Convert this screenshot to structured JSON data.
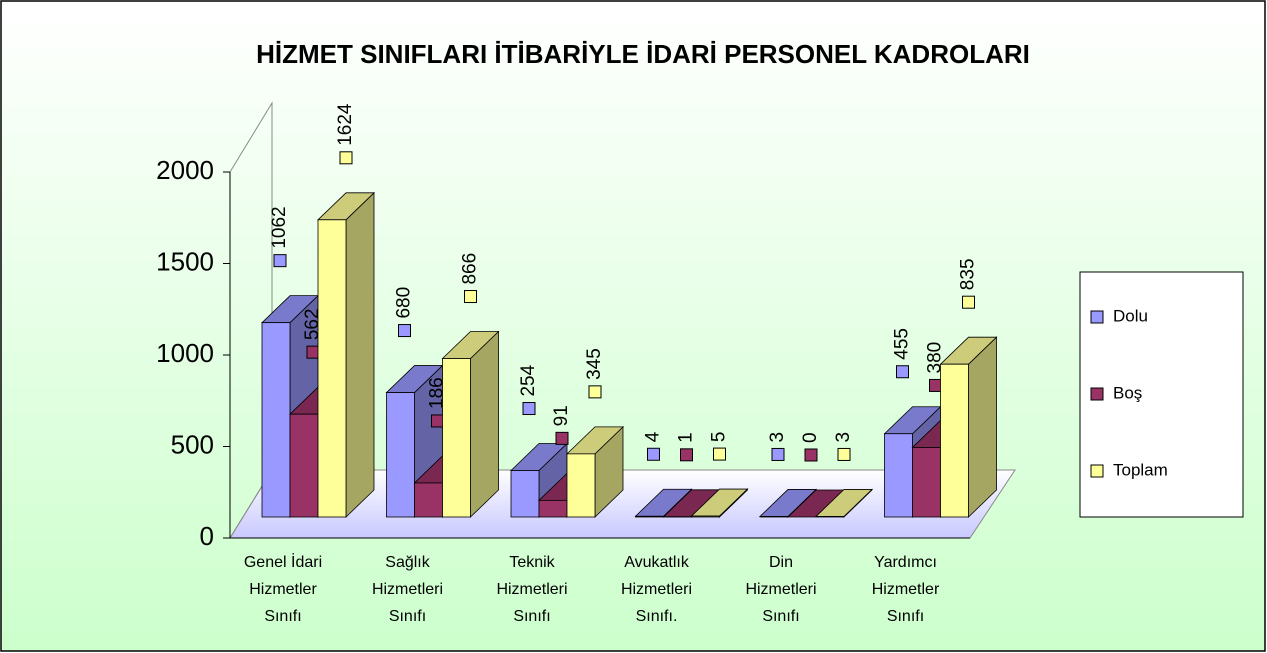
{
  "chart_data": {
    "type": "bar3d",
    "title": "HİZMET SINIFLARI İTİBARİYLE İDARİ PERSONEL KADROLARI",
    "categories": [
      [
        "Genel İdari",
        "Hizmetler",
        "Sınıfı"
      ],
      [
        "Sağlık",
        "Hizmetleri",
        "Sınıfı"
      ],
      [
        "Teknik",
        "Hizmetleri",
        "Sınıfı"
      ],
      [
        "Avukatlık",
        "Hizmetleri",
        "Sınıfı."
      ],
      [
        "Din",
        "Hizmetleri",
        "Sınıfı"
      ],
      [
        "Yardımcı",
        "Hizmetler",
        "Sınıfı"
      ]
    ],
    "series": [
      {
        "name": "Dolu",
        "color": "#9999ff",
        "values": [
          1062,
          680,
          254,
          4,
          3,
          455
        ]
      },
      {
        "name": "Boş",
        "color": "#993366",
        "values": [
          562,
          186,
          91,
          1,
          0,
          380
        ]
      },
      {
        "name": "Toplam",
        "color": "#ffff99",
        "values": [
          1624,
          866,
          345,
          5,
          3,
          835
        ]
      }
    ],
    "ylim": [
      0,
      2000
    ],
    "yticks": [
      0,
      500,
      1000,
      1500,
      2000
    ],
    "legend": "right"
  }
}
